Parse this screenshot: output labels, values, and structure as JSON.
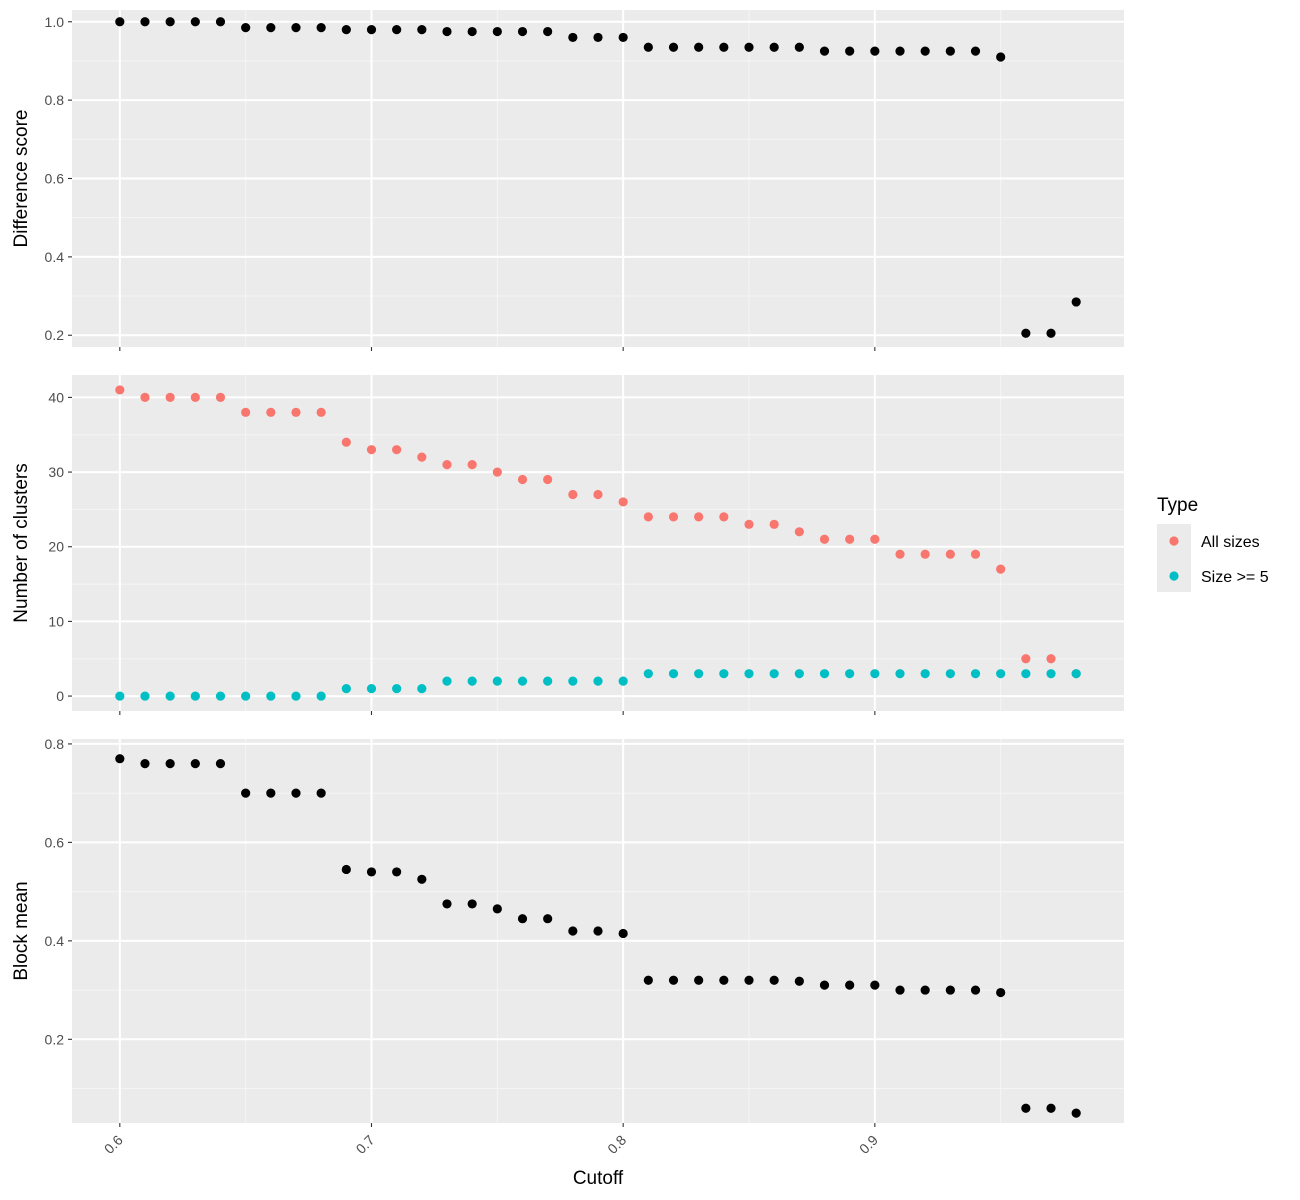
{
  "chart_data": {
    "type": "scatter",
    "x": [
      0.6,
      0.61,
      0.62,
      0.63,
      0.64,
      0.65,
      0.66,
      0.67,
      0.68,
      0.69,
      0.7,
      0.71,
      0.72,
      0.73,
      0.74,
      0.75,
      0.76,
      0.77,
      0.78,
      0.79,
      0.8,
      0.81,
      0.82,
      0.83,
      0.84,
      0.85,
      0.86,
      0.87,
      0.88,
      0.89,
      0.9,
      0.91,
      0.92,
      0.93,
      0.94,
      0.95,
      0.96,
      0.97,
      0.98
    ],
    "xlabel": "Cutoff",
    "xticks": [
      "0.6",
      "0.7",
      "0.8",
      "0.9"
    ],
    "xlim": [
      0.581,
      0.999
    ],
    "grid": true,
    "panels": [
      {
        "ylabel": "Difference score",
        "ylim": [
          0.17,
          1.03
        ],
        "yticks": [
          "0.2",
          "0.4",
          "0.6",
          "0.8",
          "1.0"
        ],
        "series": [
          {
            "color": "#000000",
            "values": [
              1.0,
              1.0,
              1.0,
              1.0,
              1.0,
              0.985,
              0.985,
              0.985,
              0.985,
              0.98,
              0.98,
              0.98,
              0.98,
              0.975,
              0.975,
              0.975,
              0.975,
              0.975,
              0.96,
              0.96,
              0.96,
              0.935,
              0.935,
              0.935,
              0.935,
              0.935,
              0.935,
              0.935,
              0.925,
              0.925,
              0.925,
              0.925,
              0.925,
              0.925,
              0.925,
              0.91,
              0.205,
              0.205,
              0.285
            ]
          }
        ]
      },
      {
        "ylabel": "Number of clusters",
        "ylim": [
          -2,
          43
        ],
        "yticks": [
          "0",
          "10",
          "20",
          "30",
          "40"
        ],
        "series": [
          {
            "name": "All sizes",
            "color": "#F8766D",
            "values": [
              41,
              40,
              40,
              40,
              40,
              38,
              38,
              38,
              38,
              34,
              33,
              33,
              32,
              31,
              31,
              30,
              29,
              29,
              27,
              27,
              26,
              24,
              24,
              24,
              24,
              23,
              23,
              22,
              21,
              21,
              21,
              19,
              19,
              19,
              19,
              17,
              5,
              5,
              3
            ]
          },
          {
            "name": "Size >= 5",
            "color": "#00BFC4",
            "values": [
              0,
              0,
              0,
              0,
              0,
              0,
              0,
              0,
              0,
              1,
              1,
              1,
              1,
              2,
              2,
              2,
              2,
              2,
              2,
              2,
              2,
              3,
              3,
              3,
              3,
              3,
              3,
              3,
              3,
              3,
              3,
              3,
              3,
              3,
              3,
              3,
              3,
              3,
              3
            ]
          }
        ]
      },
      {
        "ylabel": "Block mean",
        "ylim": [
          0.03,
          0.81
        ],
        "yticks": [
          "0.2",
          "0.4",
          "0.6",
          "0.8"
        ],
        "series": [
          {
            "color": "#000000",
            "values": [
              0.77,
              0.76,
              0.76,
              0.76,
              0.76,
              0.7,
              0.7,
              0.7,
              0.7,
              0.545,
              0.54,
              0.54,
              0.525,
              0.475,
              0.475,
              0.465,
              0.445,
              0.445,
              0.42,
              0.42,
              0.415,
              0.32,
              0.32,
              0.32,
              0.32,
              0.32,
              0.32,
              0.318,
              0.31,
              0.31,
              0.31,
              0.3,
              0.3,
              0.3,
              0.3,
              0.295,
              0.06,
              0.06,
              0.05
            ]
          }
        ]
      }
    ],
    "legend": {
      "title": "Type",
      "position": "right",
      "entries": [
        {
          "label": "All sizes",
          "color": "#F8766D"
        },
        {
          "label": "Size >= 5",
          "color": "#00BFC4"
        }
      ]
    }
  }
}
